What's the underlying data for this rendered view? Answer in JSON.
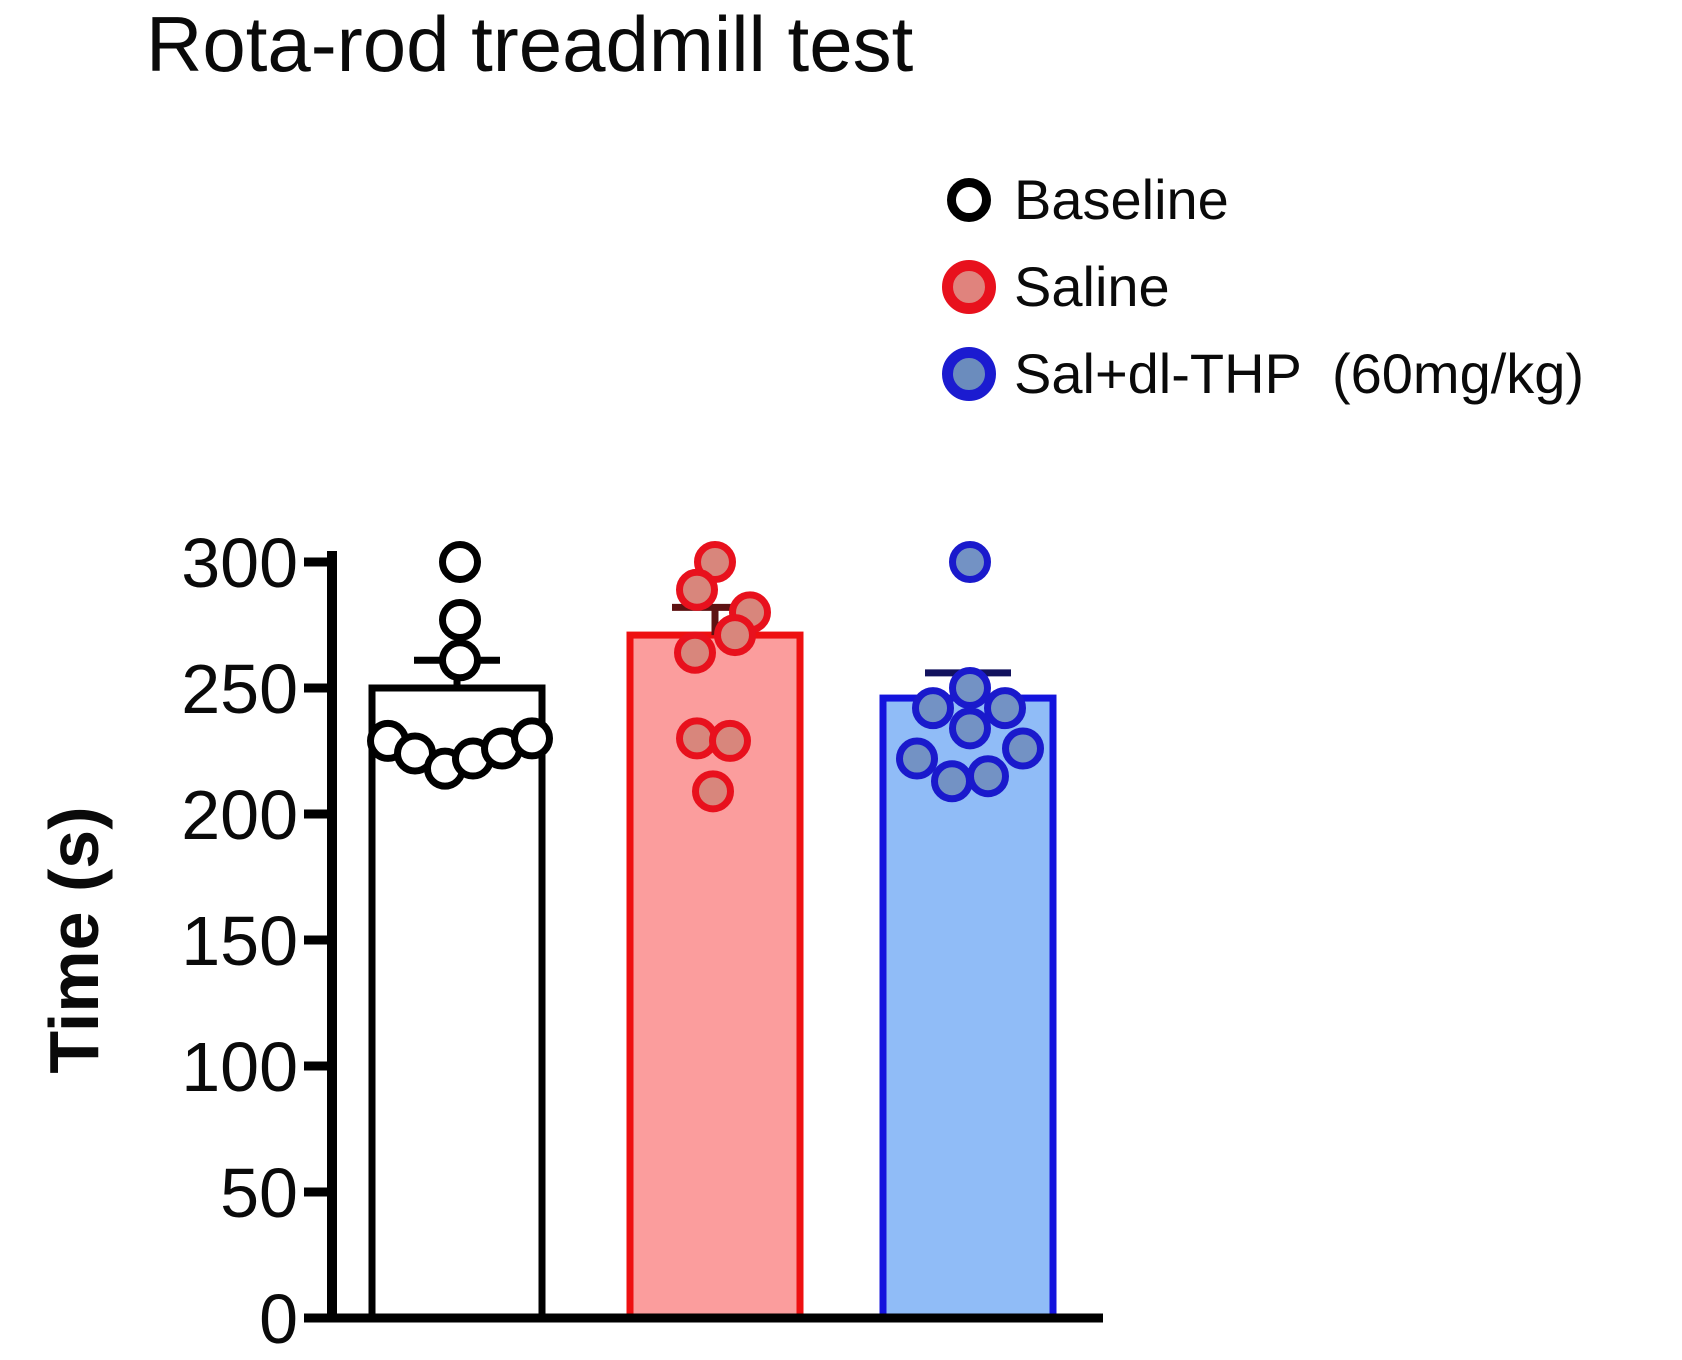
{
  "title": "Rota-rod treadmill test",
  "legend": [
    {
      "label": "Baseline",
      "ring": "#000000",
      "fill": "#ffffff"
    },
    {
      "label": "Saline",
      "ring": "#e8111d",
      "fill": "#e0837d"
    },
    {
      "label": "Sal+dl-THP  (60mg/kg)",
      "ring": "#1b1bd0",
      "fill": "#6b8cbd"
    }
  ],
  "chart_data": {
    "type": "bar",
    "title": "Rota-rod treadmill test",
    "xlabel": "",
    "ylabel": "Time (s)",
    "ylim": [
      0,
      300
    ],
    "yticks": [
      0,
      50,
      100,
      150,
      200,
      250,
      300
    ],
    "grid": false,
    "legend_position": "top-right",
    "categories": [
      "Baseline",
      "Saline",
      "Sal+dl-THP (60mg/kg)"
    ],
    "series": [
      {
        "id": "baseline",
        "name": "Baseline",
        "mean": 250,
        "sem": 11,
        "bar_fill": "#ffffff",
        "bar_stroke": "#000000",
        "err_color": "#000000",
        "point_stroke": "#000000",
        "point_fill": "#ffffff",
        "points": [
          {
            "v": 300,
            "dx": 3
          },
          {
            "v": 277,
            "dx": 3
          },
          {
            "v": 261,
            "dx": 3
          },
          {
            "v": 229,
            "dx": -69
          },
          {
            "v": 224,
            "dx": -42
          },
          {
            "v": 218,
            "dx": -12
          },
          {
            "v": 222,
            "dx": 16
          },
          {
            "v": 226,
            "dx": 45
          },
          {
            "v": 230,
            "dx": 75
          }
        ]
      },
      {
        "id": "saline",
        "name": "Saline",
        "mean": 271,
        "sem": 11,
        "bar_fill": "#fb9d9d",
        "bar_stroke": "#ee1011",
        "err_color": "#5e1212",
        "point_stroke": "#e8111d",
        "point_fill": "#d8867c",
        "points": [
          {
            "v": 300,
            "dx": 0
          },
          {
            "v": 289,
            "dx": -18
          },
          {
            "v": 280,
            "dx": 35
          },
          {
            "v": 271,
            "dx": 20
          },
          {
            "v": 264,
            "dx": -20
          },
          {
            "v": 230,
            "dx": -18
          },
          {
            "v": 229,
            "dx": 15
          },
          {
            "v": 209,
            "dx": -2
          }
        ]
      },
      {
        "id": "sal-dl-thp",
        "name": "Sal+dl-THP (60mg/kg)",
        "mean": 246,
        "sem": 10,
        "bar_fill": "#90bcf7",
        "bar_stroke": "#1313dd",
        "err_color": "#12125e",
        "point_stroke": "#1a1acc",
        "point_fill": "#7392c4",
        "points": [
          {
            "v": 300,
            "dx": 2
          },
          {
            "v": 250,
            "dx": 2
          },
          {
            "v": 242,
            "dx": -35
          },
          {
            "v": 242,
            "dx": 37
          },
          {
            "v": 234,
            "dx": 2
          },
          {
            "v": 226,
            "dx": 55
          },
          {
            "v": 222,
            "dx": -51
          },
          {
            "v": 213,
            "dx": -16
          },
          {
            "v": 215,
            "dx": 20
          }
        ]
      }
    ]
  }
}
